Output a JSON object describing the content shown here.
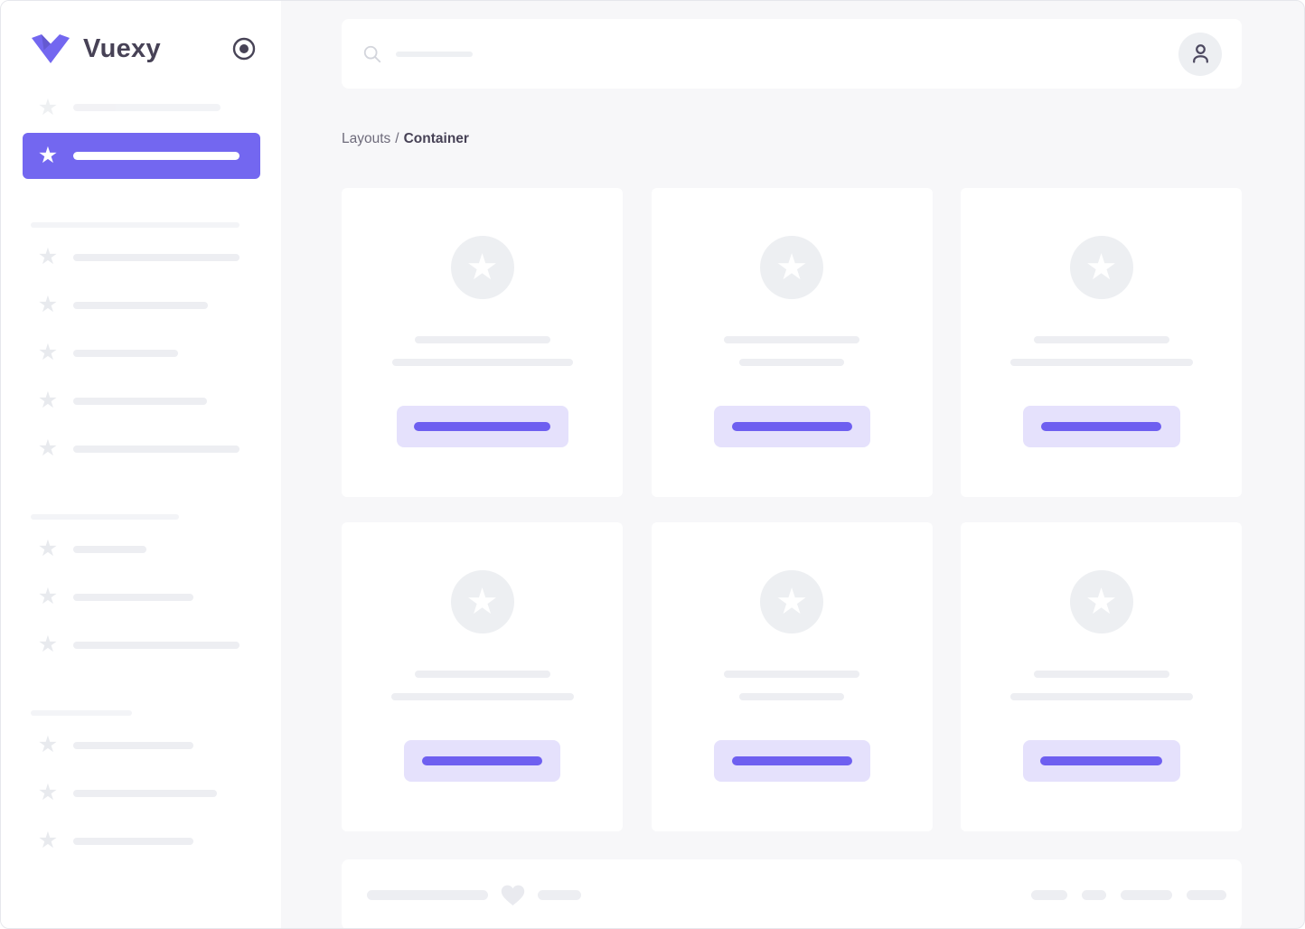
{
  "colors": {
    "primary": "#7367f0",
    "primary_soft": "#e5e1fc",
    "primary_bar": "#6e5ff0",
    "skeleton": "#edeef2",
    "skeleton_light": "#f3f4f7",
    "star_gray": "#e8eaee",
    "avatar_bg": "#edeff2",
    "heart_gray": "#e9eaef",
    "text_dark": "#474256",
    "text_muted": "#6e6b7b",
    "icon_dark": "#4d4960",
    "search_icon": "#d3d5dc",
    "surface": "#ffffff",
    "canvas": "#f7f7f9",
    "frame_border": "#e6e7ec"
  },
  "sidebar": {
    "brand": "Vuexy",
    "logo_icon": "vuexy-v-logo",
    "pin_toggle_icon": "circle-dot",
    "ghost_item": {
      "icon": "star",
      "label_skeleton_width": 163
    },
    "active_item": {
      "icon": "star",
      "label_skeleton_width": 184,
      "state": "active"
    },
    "sections": [
      {
        "header_skeleton_width": 231,
        "items": [
          184,
          149,
          116,
          148,
          184
        ]
      },
      {
        "header_skeleton_width": 164,
        "items": [
          81,
          133,
          184
        ]
      },
      {
        "header_skeleton_width": 112,
        "items": [
          133,
          159,
          133
        ]
      }
    ]
  },
  "header": {
    "search_icon": "magnifier",
    "search_placeholder_skeleton_width": 85,
    "avatar_icon": "person"
  },
  "breadcrumb": {
    "parent": "Layouts",
    "separator": "/",
    "current": "Container"
  },
  "cards": [
    {
      "icon": "star",
      "line_widths": [
        150,
        200
      ],
      "button_width": 190,
      "button_label_width": 151
    },
    {
      "icon": "star",
      "line_widths": [
        150,
        116
      ],
      "button_width": 173,
      "button_label_width": 133
    },
    {
      "icon": "star",
      "line_widths": [
        150,
        202
      ],
      "button_width": 174,
      "button_label_width": 133
    },
    {
      "icon": "star",
      "line_widths": [
        150,
        202
      ],
      "button_width": 173,
      "button_label_width": 133
    },
    {
      "icon": "star",
      "line_widths": [
        150,
        116
      ],
      "button_width": 173,
      "button_label_width": 133
    },
    {
      "icon": "star",
      "line_widths": [
        150,
        202
      ],
      "button_width": 174,
      "button_label_width": 135
    }
  ],
  "footer": {
    "text_skeleton_width": 134,
    "heart_icon": "heart",
    "small_skeleton_width": 48,
    "link_skeleton_widths": [
      40,
      27,
      57,
      44
    ]
  }
}
